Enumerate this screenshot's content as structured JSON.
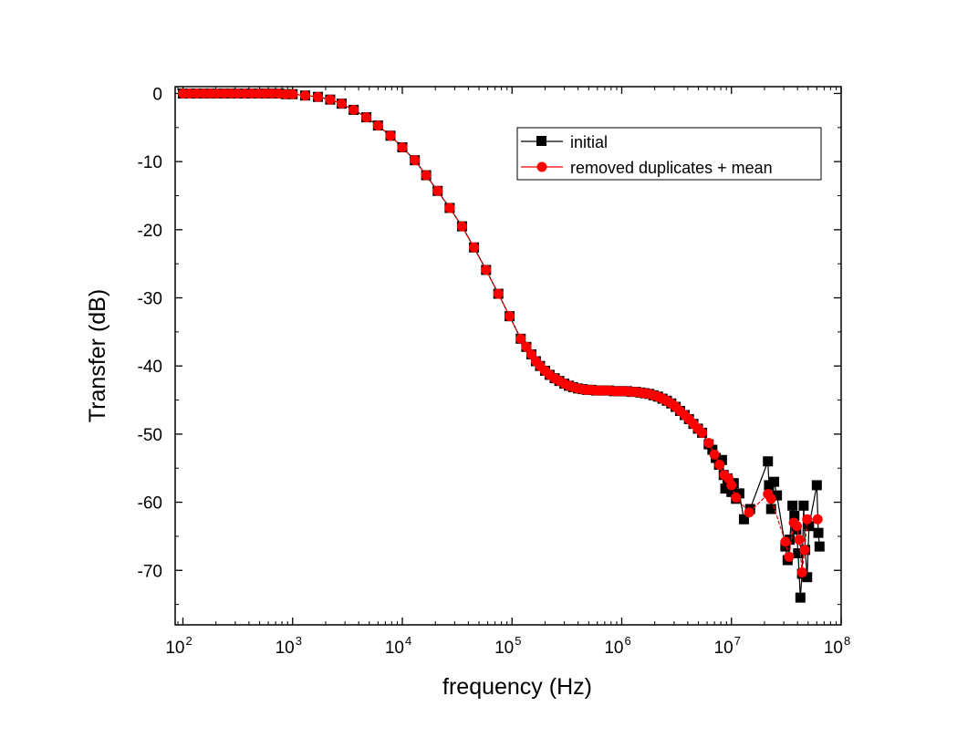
{
  "chart_data": {
    "type": "scatter",
    "xscale": "log",
    "xlabel": "frequency (Hz)",
    "ylabel": "Transfer (dB)",
    "xlim": [
      85,
      100000000
    ],
    "ylim": [
      -78,
      1
    ],
    "xticks": [
      {
        "value": 100,
        "base": "10",
        "exp": "2"
      },
      {
        "value": 1000,
        "base": "10",
        "exp": "3"
      },
      {
        "value": 10000,
        "base": "10",
        "exp": "4"
      },
      {
        "value": 100000,
        "base": "10",
        "exp": "5"
      },
      {
        "value": 1000000,
        "base": "10",
        "exp": "6"
      },
      {
        "value": 10000000,
        "base": "10",
        "exp": "7"
      },
      {
        "value": 100000000,
        "base": "10",
        "exp": "8"
      }
    ],
    "yticks": [
      {
        "value": 0,
        "label": "0"
      },
      {
        "value": -10,
        "label": "-10"
      },
      {
        "value": -20,
        "label": "-20"
      },
      {
        "value": -30,
        "label": "-30"
      },
      {
        "value": -40,
        "label": "-40"
      },
      {
        "value": -50,
        "label": "-50"
      },
      {
        "value": -60,
        "label": "-60"
      },
      {
        "value": -70,
        "label": "-70"
      }
    ],
    "series": [
      {
        "name": "initial",
        "color": "#000000",
        "marker": "square",
        "points": [
          [
            100,
            0
          ],
          [
            115,
            0
          ],
          [
            133,
            0
          ],
          [
            154,
            0
          ],
          [
            178,
            0
          ],
          [
            205,
            0
          ],
          [
            237,
            0
          ],
          [
            274,
            0
          ],
          [
            316,
            0
          ],
          [
            365,
            0
          ],
          [
            422,
            0
          ],
          [
            487,
            0
          ],
          [
            562,
            0
          ],
          [
            649,
            0
          ],
          [
            750,
            0
          ],
          [
            866,
            -0.1
          ],
          [
            1000,
            -0.1
          ],
          [
            1300,
            -0.3
          ],
          [
            1700,
            -0.5
          ],
          [
            2200,
            -0.9
          ],
          [
            2800,
            -1.5
          ],
          [
            3600,
            -2.4
          ],
          [
            4700,
            -3.5
          ],
          [
            6000,
            -4.7
          ],
          [
            7800,
            -6.2
          ],
          [
            10000,
            -7.9
          ],
          [
            13000,
            -9.8
          ],
          [
            16500,
            -12.0
          ],
          [
            21000,
            -14.3
          ],
          [
            27000,
            -16.8
          ],
          [
            35000,
            -19.5
          ],
          [
            45000,
            -22.6
          ],
          [
            58000,
            -25.9
          ],
          [
            75000,
            -29.4
          ],
          [
            95000,
            -32.7
          ],
          [
            120000,
            -36.0
          ],
          [
            135000,
            -37.2
          ],
          [
            150000,
            -38.3
          ],
          [
            165000,
            -39.3
          ],
          [
            180000,
            -40.0
          ],
          [
            200000,
            -40.7
          ],
          [
            220000,
            -41.3
          ],
          [
            245000,
            -41.8
          ],
          [
            270000,
            -42.2
          ],
          [
            300000,
            -42.6
          ],
          [
            330000,
            -42.9
          ],
          [
            360000,
            -43.1
          ],
          [
            400000,
            -43.3
          ],
          [
            440000,
            -43.4
          ],
          [
            480000,
            -43.5
          ],
          [
            530000,
            -43.5
          ],
          [
            580000,
            -43.6
          ],
          [
            640000,
            -43.6
          ],
          [
            700000,
            -43.6
          ],
          [
            770000,
            -43.6
          ],
          [
            850000,
            -43.7
          ],
          [
            930000,
            -43.7
          ],
          [
            1020000,
            -43.7
          ],
          [
            1120000,
            -43.7
          ],
          [
            1230000,
            -43.8
          ],
          [
            1350000,
            -43.8
          ],
          [
            1480000,
            -43.9
          ],
          [
            1620000,
            -44.0
          ],
          [
            1780000,
            -44.1
          ],
          [
            1950000,
            -44.3
          ],
          [
            2140000,
            -44.5
          ],
          [
            2350000,
            -44.8
          ],
          [
            2580000,
            -45.1
          ],
          [
            2830000,
            -45.5
          ],
          [
            3100000,
            -46.0
          ],
          [
            3400000,
            -46.6
          ],
          [
            3750000,
            -47.2
          ],
          [
            4100000,
            -47.8
          ],
          [
            4500000,
            -48.5
          ],
          [
            4950000,
            -49.2
          ],
          [
            5400000,
            -49.8
          ],
          [
            6200000,
            -51.5
          ],
          [
            6700000,
            -52.3
          ],
          [
            7200000,
            -53.5
          ],
          [
            7700000,
            -54.5
          ],
          [
            8200000,
            -53.8
          ],
          [
            8500000,
            -56.0
          ],
          [
            8800000,
            -58.0
          ],
          [
            9200000,
            -56.5
          ],
          [
            9600000,
            -57.8
          ],
          [
            10000000,
            -58.5
          ],
          [
            10500000,
            -57.2
          ],
          [
            11000000,
            -59.5
          ],
          [
            11800000,
            -58.7
          ],
          [
            13000000,
            -62.5
          ],
          [
            14800000,
            -61.0
          ],
          [
            21500000,
            -54.0
          ],
          [
            22000000,
            -57.5
          ],
          [
            23000000,
            -61.0
          ],
          [
            24500000,
            -57.0
          ],
          [
            26000000,
            -59.0
          ],
          [
            31000000,
            -66.5
          ],
          [
            32500000,
            -68.5
          ],
          [
            34000000,
            -65.5
          ],
          [
            36000000,
            -60.5
          ],
          [
            37500000,
            -62.0
          ],
          [
            39000000,
            -64.0
          ],
          [
            40500000,
            -67.5
          ],
          [
            42500000,
            -74.0
          ],
          [
            44000000,
            -70.5
          ],
          [
            45500000,
            -60.5
          ],
          [
            47000000,
            -67.0
          ],
          [
            49000000,
            -71.0
          ],
          [
            51000000,
            -63.5
          ],
          [
            60000000,
            -57.5
          ],
          [
            62000000,
            -64.5
          ],
          [
            63500000,
            -66.5
          ]
        ]
      },
      {
        "name": "removed duplicates + mean",
        "color": "#ff0000",
        "marker": "circle",
        "points": [
          [
            100,
            0
          ],
          [
            115,
            0
          ],
          [
            133,
            0
          ],
          [
            154,
            0
          ],
          [
            178,
            0
          ],
          [
            205,
            0
          ],
          [
            237,
            0
          ],
          [
            274,
            0
          ],
          [
            316,
            0
          ],
          [
            365,
            0
          ],
          [
            422,
            0
          ],
          [
            487,
            0
          ],
          [
            562,
            0
          ],
          [
            649,
            0
          ],
          [
            750,
            0
          ],
          [
            866,
            -0.1
          ],
          [
            1000,
            -0.1
          ],
          [
            1300,
            -0.3
          ],
          [
            1700,
            -0.5
          ],
          [
            2200,
            -0.9
          ],
          [
            2800,
            -1.5
          ],
          [
            3600,
            -2.4
          ],
          [
            4700,
            -3.5
          ],
          [
            6000,
            -4.7
          ],
          [
            7800,
            -6.2
          ],
          [
            10000,
            -7.9
          ],
          [
            13000,
            -9.8
          ],
          [
            16500,
            -12.0
          ],
          [
            21000,
            -14.3
          ],
          [
            27000,
            -16.8
          ],
          [
            35000,
            -19.5
          ],
          [
            45000,
            -22.6
          ],
          [
            58000,
            -25.9
          ],
          [
            75000,
            -29.4
          ],
          [
            95000,
            -32.7
          ],
          [
            120000,
            -36.0
          ],
          [
            135000,
            -37.2
          ],
          [
            150000,
            -38.3
          ],
          [
            165000,
            -39.3
          ],
          [
            180000,
            -40.0
          ],
          [
            200000,
            -40.7
          ],
          [
            220000,
            -41.3
          ],
          [
            245000,
            -41.8
          ],
          [
            270000,
            -42.2
          ],
          [
            300000,
            -42.6
          ],
          [
            330000,
            -42.9
          ],
          [
            360000,
            -43.1
          ],
          [
            400000,
            -43.3
          ],
          [
            440000,
            -43.4
          ],
          [
            480000,
            -43.5
          ],
          [
            530000,
            -43.5
          ],
          [
            580000,
            -43.6
          ],
          [
            640000,
            -43.6
          ],
          [
            700000,
            -43.6
          ],
          [
            770000,
            -43.6
          ],
          [
            850000,
            -43.7
          ],
          [
            930000,
            -43.7
          ],
          [
            1020000,
            -43.7
          ],
          [
            1120000,
            -43.7
          ],
          [
            1230000,
            -43.8
          ],
          [
            1350000,
            -43.8
          ],
          [
            1480000,
            -43.9
          ],
          [
            1620000,
            -44.0
          ],
          [
            1780000,
            -44.1
          ],
          [
            1950000,
            -44.3
          ],
          [
            2140000,
            -44.5
          ],
          [
            2350000,
            -44.8
          ],
          [
            2580000,
            -45.1
          ],
          [
            2830000,
            -45.5
          ],
          [
            3100000,
            -46.0
          ],
          [
            3400000,
            -46.6
          ],
          [
            3750000,
            -47.2
          ],
          [
            4100000,
            -47.8
          ],
          [
            4500000,
            -48.5
          ],
          [
            4950000,
            -49.2
          ],
          [
            5400000,
            -49.8
          ],
          [
            6200000,
            -51.3
          ],
          [
            7000000,
            -53.0
          ],
          [
            7800000,
            -54.5
          ],
          [
            8600000,
            -56.0
          ],
          [
            9400000,
            -56.5
          ],
          [
            10000000,
            -57.5
          ],
          [
            11000000,
            -59.3
          ],
          [
            14500000,
            -61.5
          ],
          [
            21500000,
            -58.8
          ],
          [
            23000000,
            -59.5
          ],
          [
            31000000,
            -65.8
          ],
          [
            33500000,
            -68.0
          ],
          [
            37000000,
            -63.0
          ],
          [
            39500000,
            -63.5
          ],
          [
            41500000,
            -65.5
          ],
          [
            44000000,
            -70.3
          ],
          [
            46500000,
            -67.0
          ],
          [
            49000000,
            -62.5
          ],
          [
            61000000,
            -62.5
          ]
        ]
      }
    ],
    "legend": {
      "position": "top-right",
      "entries": [
        "initial",
        "removed duplicates + mean"
      ]
    }
  }
}
